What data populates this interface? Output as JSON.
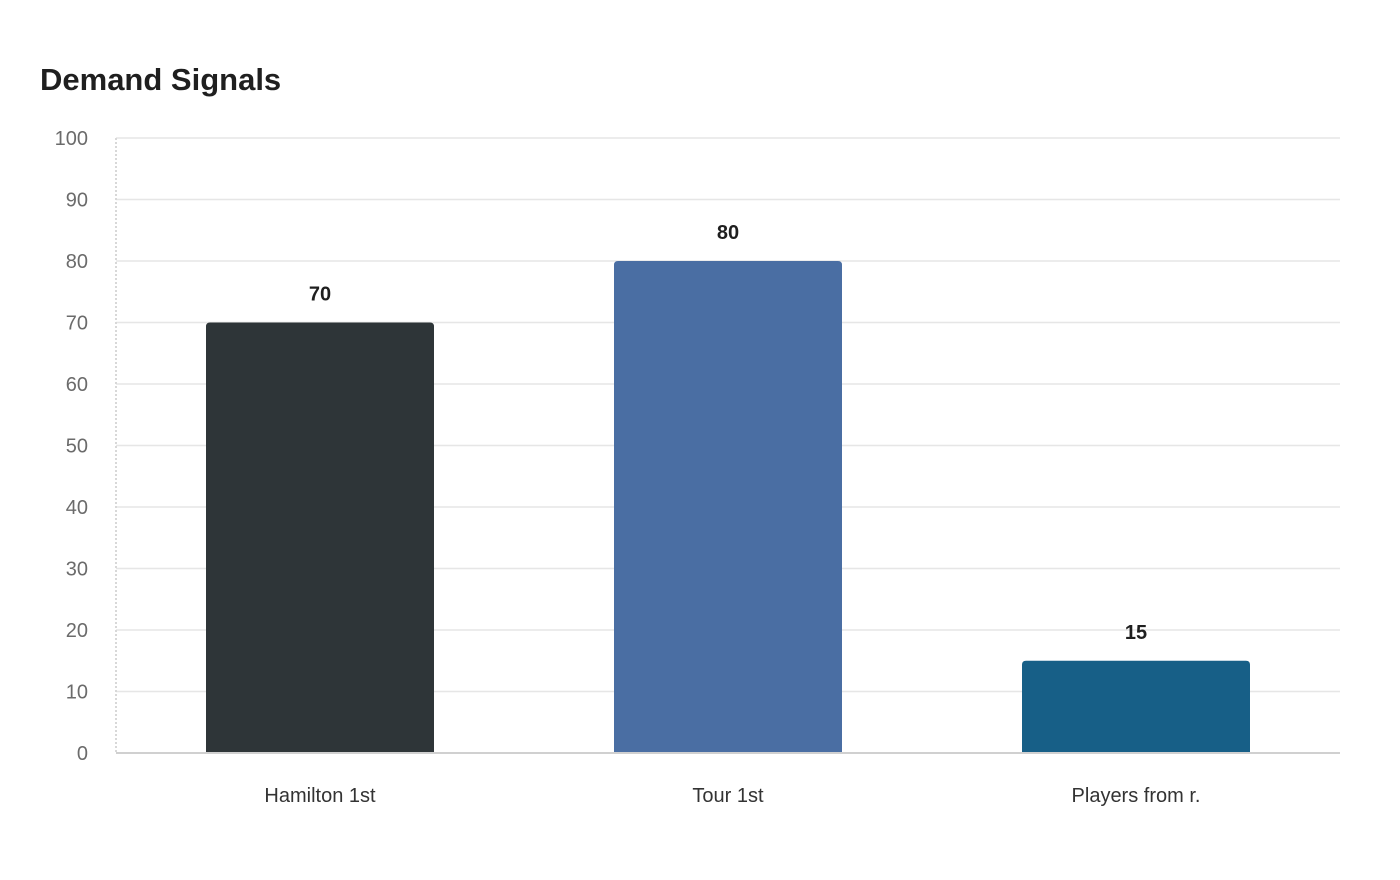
{
  "chart_data": {
    "type": "bar",
    "title": "Demand Signals",
    "xlabel": "",
    "ylabel": "",
    "categories": [
      "Hamilton 1st",
      "Tour 1st",
      "Players from r."
    ],
    "values": [
      70,
      80,
      15
    ],
    "bar_colors": [
      "#2e3538",
      "#4a6ea3",
      "#175f87"
    ],
    "ylim": [
      0,
      100
    ],
    "yticks": [
      0,
      10,
      20,
      30,
      40,
      50,
      60,
      70,
      80,
      90,
      100
    ],
    "grid": true,
    "data_labels": true,
    "legend": "none"
  }
}
